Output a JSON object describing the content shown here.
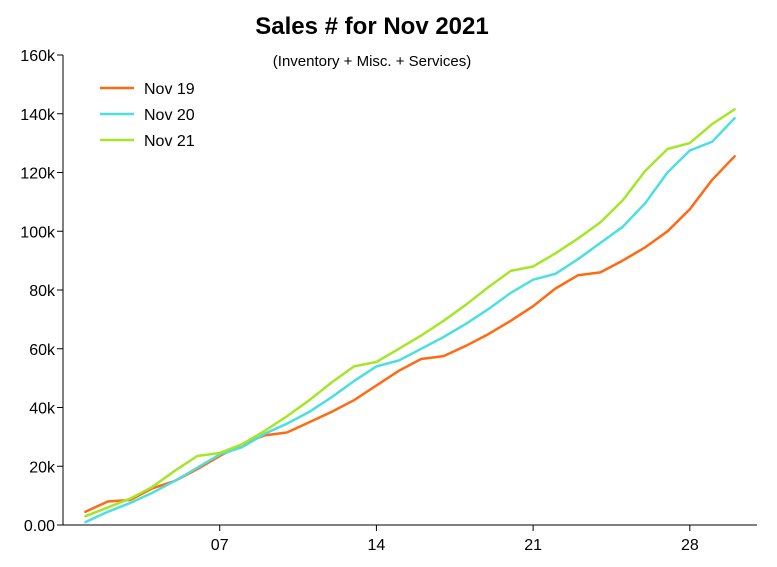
{
  "chart_data": {
    "type": "line",
    "title": "Sales # for Nov 2021",
    "subtitle": "(Inventory + Misc. + Services)",
    "xlabel": "",
    "ylabel": "",
    "xlim": [
      0,
      31
    ],
    "ylim": [
      0,
      160000
    ],
    "x_ticks": [
      7,
      14,
      21,
      28
    ],
    "x_tick_labels": [
      "07",
      "14",
      "21",
      "28"
    ],
    "y_ticks": [
      0,
      20000,
      40000,
      60000,
      80000,
      100000,
      120000,
      140000,
      160000
    ],
    "y_tick_labels": [
      "0.00",
      "20k",
      "40k",
      "60k",
      "80k",
      "100k",
      "120k",
      "140k",
      "160k"
    ],
    "grid": false,
    "legend_position": "top-left",
    "x": [
      1,
      2,
      3,
      4,
      5,
      6,
      7,
      8,
      9,
      10,
      11,
      12,
      13,
      14,
      15,
      16,
      17,
      18,
      19,
      20,
      21,
      22,
      23,
      24,
      25,
      26,
      27,
      28,
      29,
      30
    ],
    "series": [
      {
        "name": "Nov 19",
        "color": "#ff6a13",
        "values": [
          4500,
          8000,
          8500,
          12500,
          15000,
          19000,
          23500,
          27500,
          30500,
          31500,
          35000,
          38500,
          42500,
          47500,
          52500,
          56500,
          57500,
          61000,
          65000,
          69500,
          74500,
          80500,
          85000,
          86000,
          90000,
          94500,
          100000,
          107500,
          117500,
          125500
        ]
      },
      {
        "name": "Nov 20",
        "color": "#4ddfdf",
        "values": [
          1000,
          4500,
          7500,
          11000,
          15000,
          19500,
          24000,
          26500,
          31000,
          34500,
          38500,
          43500,
          49000,
          54000,
          56000,
          60000,
          64000,
          68500,
          73500,
          79000,
          83500,
          85500,
          90500,
          96000,
          101500,
          109500,
          120000,
          127500,
          130500,
          138500
        ]
      },
      {
        "name": "Nov 21",
        "color": "#a6e62a",
        "values": [
          3000,
          6000,
          9000,
          13000,
          18500,
          23500,
          24500,
          27500,
          32000,
          37000,
          42500,
          48500,
          54000,
          55500,
          60000,
          64500,
          69500,
          75000,
          81000,
          86500,
          88000,
          92500,
          97500,
          103000,
          110500,
          120500,
          128000,
          130000,
          136500,
          141500
        ]
      }
    ]
  }
}
